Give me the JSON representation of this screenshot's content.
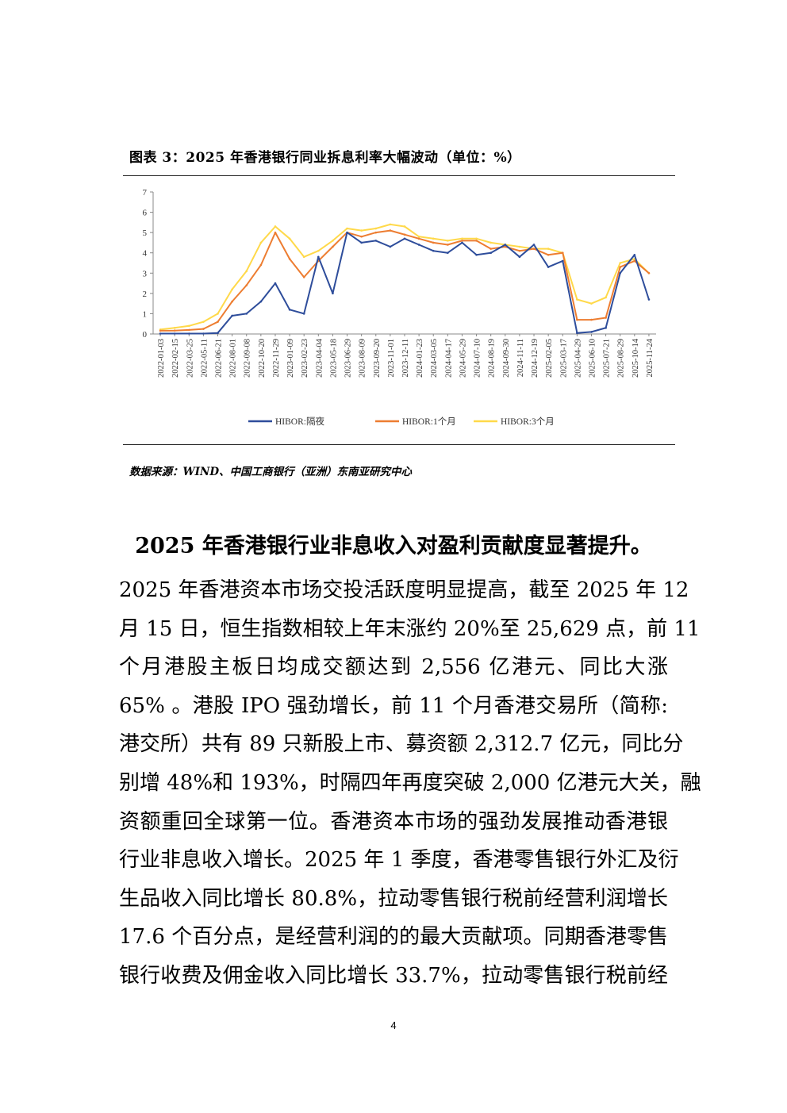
{
  "figure": {
    "title": "图表 3：2025 年香港银行同业拆息利率大幅波动（单位：%）",
    "source": "数据来源：WIND、中国工商银行（亚洲）东南亚研究中心"
  },
  "chart_data": {
    "type": "line",
    "y_ticks": [
      "0",
      "1",
      "2",
      "3",
      "4",
      "5",
      "6",
      "7"
    ],
    "ylim": [
      0,
      7
    ],
    "grid": false,
    "legend_position": "bottom",
    "x_tick_labels": [
      "2022-01-03",
      "2022-02-15",
      "2022-03-25",
      "2022-05-11",
      "2022-06-21",
      "2022-08-01",
      "2022-09-08",
      "2022-10-20",
      "2022-11-29",
      "2023-01-09",
      "2023-02-23",
      "2023-04-04",
      "2023-05-18",
      "2023-06-29",
      "2023-08-09",
      "2023-09-20",
      "2023-11-01",
      "2023-12-11",
      "2024-01-23",
      "2024-03-05",
      "2024-04-17",
      "2024-05-29",
      "2024-07-10",
      "2024-08-19",
      "2024-09-30",
      "2024-11-11",
      "2024-12-19",
      "2025-02-05",
      "2025-03-17",
      "2025-04-29",
      "2025-06-10",
      "2025-07-21",
      "2025-08-29",
      "2025-10-14",
      "2025-11-24"
    ],
    "series": [
      {
        "name": "HIBOR:隔夜",
        "color": "#2e4d9b",
        "values": [
          0.02,
          0.02,
          0.02,
          0.02,
          0.05,
          0.9,
          1.0,
          1.6,
          2.5,
          1.2,
          1.0,
          3.8,
          2.0,
          5.0,
          4.5,
          4.6,
          4.3,
          4.7,
          4.4,
          4.1,
          4.0,
          4.5,
          3.9,
          4.0,
          4.4,
          3.8,
          4.4,
          3.3,
          3.6,
          0.05,
          0.1,
          0.3,
          3.0,
          3.9,
          1.7
        ]
      },
      {
        "name": "HIBOR:1个月",
        "color": "#ed7d31",
        "values": [
          0.16,
          0.17,
          0.2,
          0.25,
          0.6,
          1.6,
          2.4,
          3.4,
          5.0,
          3.7,
          2.8,
          3.6,
          4.3,
          5.0,
          4.8,
          5.0,
          5.1,
          4.9,
          4.7,
          4.5,
          4.4,
          4.6,
          4.6,
          4.2,
          4.3,
          4.1,
          4.2,
          3.9,
          4.0,
          0.7,
          0.7,
          0.8,
          3.3,
          3.6,
          3.0
        ]
      },
      {
        "name": "HIBOR:3个月",
        "color": "#ffd94a",
        "values": [
          0.22,
          0.3,
          0.4,
          0.6,
          1.0,
          2.2,
          3.1,
          4.5,
          5.3,
          4.7,
          3.8,
          4.1,
          4.6,
          5.2,
          5.1,
          5.2,
          5.4,
          5.3,
          4.8,
          4.7,
          4.6,
          4.7,
          4.7,
          4.5,
          4.4,
          4.3,
          4.2,
          4.2,
          4.0,
          1.7,
          1.5,
          1.8,
          3.5,
          3.7,
          3.0
        ]
      }
    ]
  },
  "heading": "2025 年香港银行业非息收入对盈利贡献度显著提升。",
  "body_lines": [
    "2025 年香港资本市场交投活跃度明显提高，截至 2025 年 12",
    "月 15 日，恒生指数相较上年末涨约 20%至 25,629 点，前 11",
    "个月港股主板日均成交额达到 2,556 亿港元、同比大涨",
    "65% 。港股 IPO 强劲增长，前 11 个月香港交易所（简称:",
    "港交所）共有 89 只新股上市、募资额 2,312.7 亿元，同比分",
    "别增 48%和 193%，时隔四年再度突破 2,000 亿港元大关，融",
    "资额重回全球第一位。香港资本市场的强劲发展推动香港银",
    "行业非息收入增长。2025 年 1 季度，香港零售银行外汇及衍",
    "生品收入同比增长 80.8%，拉动零售银行税前经营利润增长",
    "17.6 个百分点，是经营利润的的最大贡献项。同期香港零售",
    "银行收费及佣金收入同比增长 33.7%，拉动零售银行税前经"
  ],
  "page_number": "4"
}
